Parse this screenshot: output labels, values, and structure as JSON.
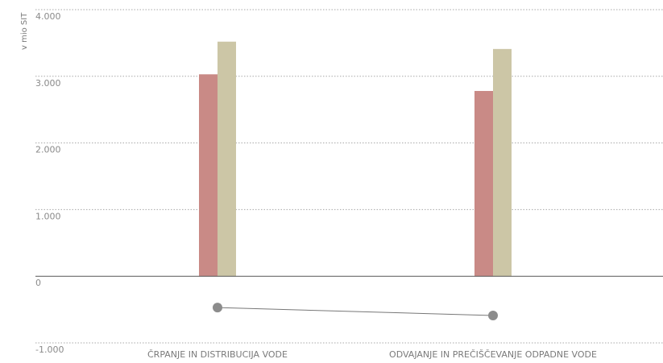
{
  "chart_data": {
    "type": "bar",
    "ylabel": "v mio SIT",
    "ylim": [
      -1000,
      4000
    ],
    "yticks": [
      {
        "value": 4000,
        "label": "4.000"
      },
      {
        "value": 3000,
        "label": "3.000"
      },
      {
        "value": 2000,
        "label": "2.000"
      },
      {
        "value": 1000,
        "label": "1.000"
      },
      {
        "value": 0,
        "label": "0"
      },
      {
        "value": -1000,
        "label": "-1.000"
      }
    ],
    "categories": [
      "ČRPANJE IN DISTRIBUCIJA VODE",
      "ODVAJANJE IN PREČIŠČEVANJE ODPADNE VODE"
    ],
    "series": [
      {
        "type": "bar",
        "color": "#c98a86",
        "values": [
          3030,
          2780
        ]
      },
      {
        "type": "bar",
        "color": "#ccc6a6",
        "values": [
          3520,
          3410
        ]
      },
      {
        "type": "line",
        "color": "#8c8c8c",
        "values": [
          -470,
          -590
        ]
      }
    ],
    "grid": true
  }
}
